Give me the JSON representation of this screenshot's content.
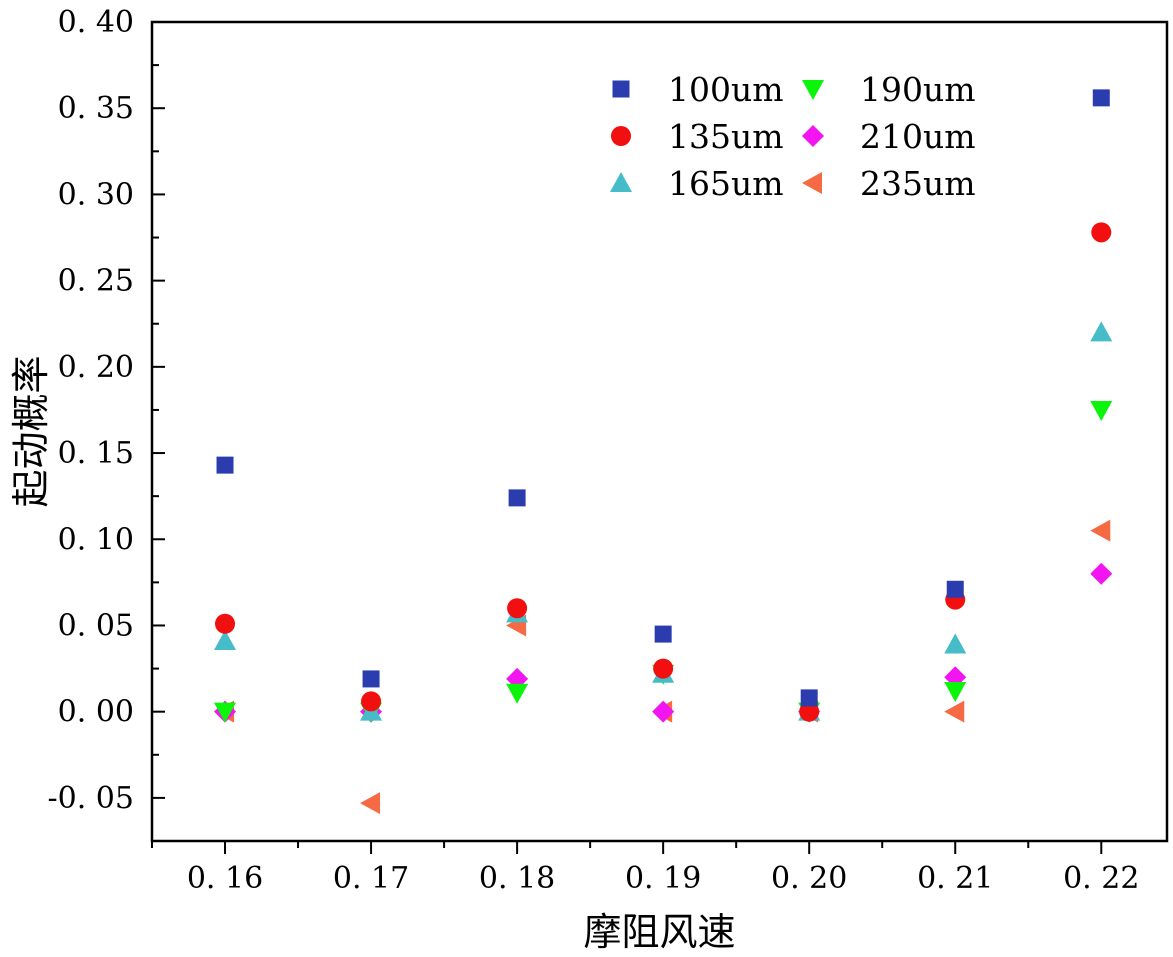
{
  "chart_data": {
    "type": "scatter",
    "title": "",
    "xlabel": "摩阻风速",
    "ylabel": "起动概率",
    "x": [
      0.16,
      0.17,
      0.18,
      0.19,
      0.2,
      0.21,
      0.22
    ],
    "xlim": [
      0.155,
      0.2245
    ],
    "ylim": [
      -0.075,
      0.4
    ],
    "xticks": [
      0.16,
      0.17,
      0.18,
      0.19,
      0.2,
      0.21,
      0.22
    ],
    "xtick_labels": [
      "0. 16",
      "0. 17",
      "0. 18",
      "0. 19",
      "0. 20",
      "0. 21",
      "0. 22"
    ],
    "yticks": [
      -0.05,
      0.0,
      0.05,
      0.1,
      0.15,
      0.2,
      0.25,
      0.3,
      0.35,
      0.4
    ],
    "ytick_labels": [
      "-0. 05",
      "0. 00",
      "0. 05",
      "0. 10",
      "0. 15",
      "0. 20",
      "0. 25",
      "0. 30",
      "0. 35",
      "0. 40"
    ],
    "grid": false,
    "legend_position": "top-right",
    "series": [
      {
        "name": "100um",
        "marker": "square",
        "color": "#2B3DAE",
        "values": [
          0.143,
          0.019,
          0.124,
          0.045,
          0.008,
          0.071,
          0.356
        ]
      },
      {
        "name": "135um",
        "marker": "circle",
        "color": "#F20F0F",
        "values": [
          0.051,
          0.006,
          0.06,
          0.025,
          0.0,
          0.065,
          0.278
        ]
      },
      {
        "name": "165um",
        "marker": "triangle-up",
        "color": "#45BCC8",
        "values": [
          0.041,
          0.0,
          0.057,
          0.022,
          0.0,
          0.039,
          0.22
        ]
      },
      {
        "name": "190um",
        "marker": "triangle-down",
        "color": "#0AF50A",
        "values": [
          0.0,
          0.0,
          0.011,
          0.022,
          0.0,
          0.012,
          0.175
        ]
      },
      {
        "name": "210um",
        "marker": "diamond",
        "color": "#F215F2",
        "values": [
          0.0,
          0.0,
          0.019,
          0.0,
          0.0,
          0.02,
          0.08
        ]
      },
      {
        "name": "235um",
        "marker": "triangle-left",
        "color": "#F56A42",
        "values": [
          0.0,
          -0.053,
          0.05,
          0.0,
          0.0,
          0.0,
          0.105
        ]
      }
    ]
  }
}
